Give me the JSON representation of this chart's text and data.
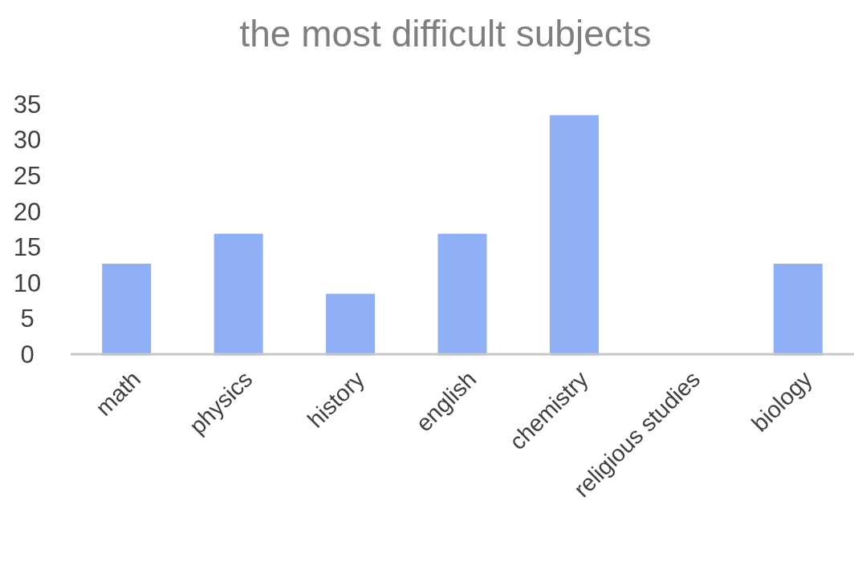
{
  "chart_data": {
    "type": "bar",
    "title": "the most difficult subjects",
    "categories": [
      "math",
      "physics",
      "history",
      "english",
      "chemistry",
      "religious studies",
      "biology"
    ],
    "values": [
      12.5,
      16.7,
      8.3,
      16.7,
      33.3,
      0,
      12.5
    ],
    "color": "#8fb0f7",
    "ylim": [
      0,
      35
    ],
    "yticks": [
      0,
      5,
      10,
      15,
      20,
      25,
      30,
      35
    ],
    "grid": false
  }
}
